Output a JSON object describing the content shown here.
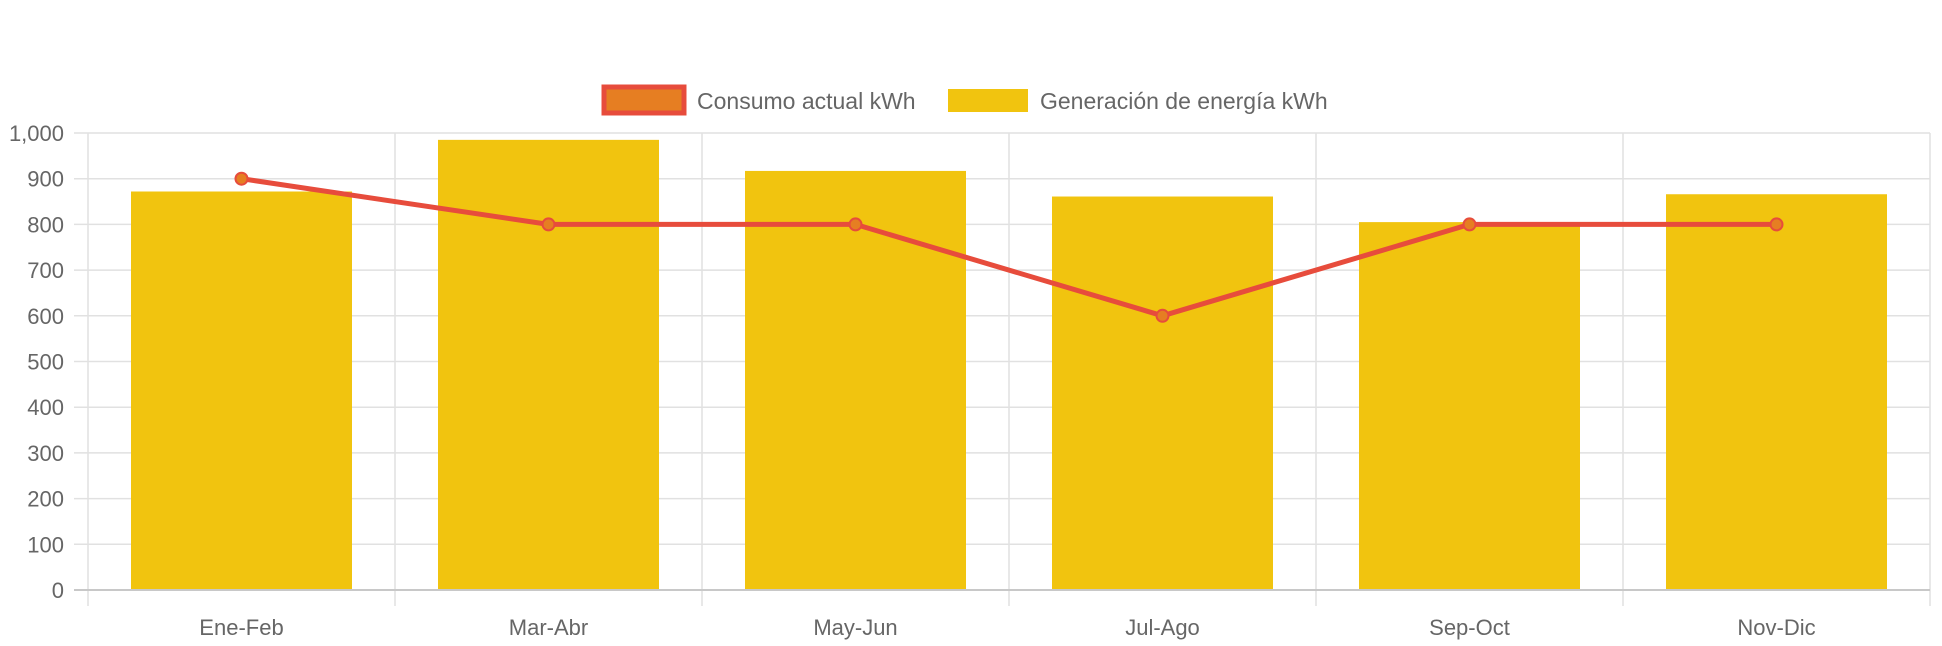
{
  "chart_data": {
    "type": "bar",
    "categories": [
      "Ene-Feb",
      "Mar-Abr",
      "May-Jun",
      "Jul-Ago",
      "Sep-Oct",
      "Nov-Dic"
    ],
    "series": [
      {
        "name": "Consumo actual kWh",
        "kind": "line",
        "values": [
          900,
          800,
          800,
          600,
          800,
          800
        ],
        "color": "#e74c3c",
        "point_color": "#e67e22"
      },
      {
        "name": "Generación de energía kWh",
        "kind": "bar",
        "values": [
          872,
          985,
          917,
          861,
          805,
          866
        ],
        "color": "#f1c40f"
      }
    ],
    "y_ticks": [
      "1,000",
      "900",
      "800",
      "700",
      "600",
      "500",
      "400",
      "300",
      "200",
      "100",
      "0"
    ],
    "ylim": [
      0,
      1000
    ],
    "grid": true,
    "legend_position": "top"
  }
}
